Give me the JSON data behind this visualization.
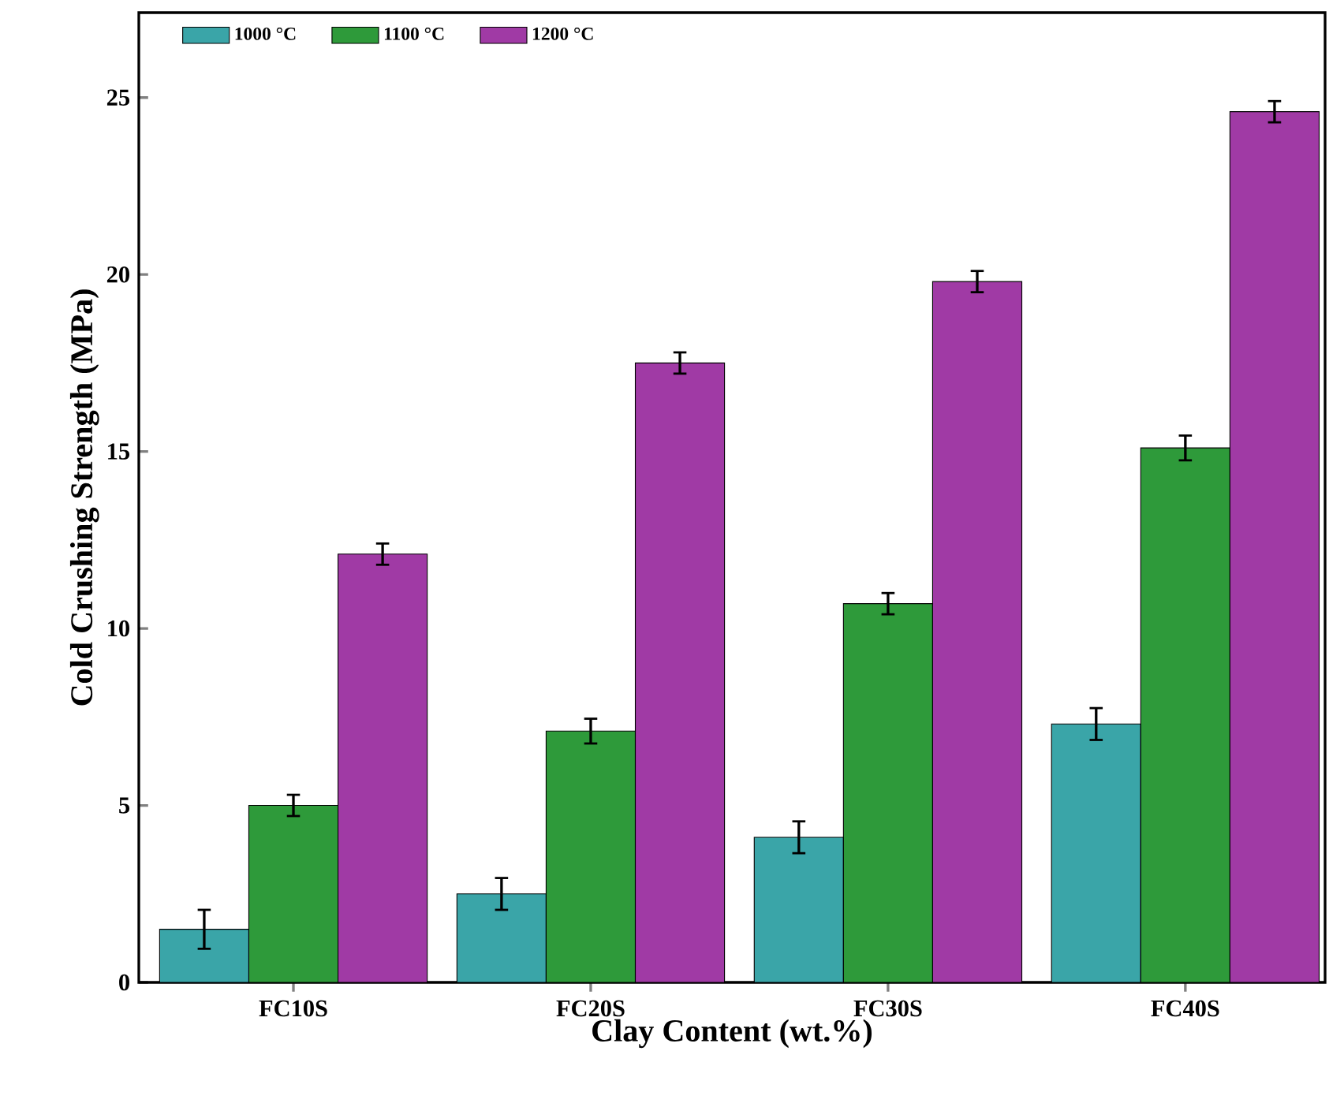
{
  "chart_data": {
    "type": "bar",
    "xlabel": "Clay Content (wt.%)",
    "ylabel": "Cold Crushing Strength (MPa)",
    "categories": [
      "FC10S",
      "FC20S",
      "FC30S",
      "FC40S"
    ],
    "series": [
      {
        "name": "1000 °C",
        "color": "#3aa5a8",
        "values": [
          1.5,
          2.5,
          4.1,
          7.3
        ],
        "errors": [
          0.55,
          0.45,
          0.45,
          0.45
        ]
      },
      {
        "name": "1100 °C",
        "color": "#2e9a3a",
        "values": [
          5.0,
          7.1,
          10.7,
          15.1
        ],
        "errors": [
          0.3,
          0.35,
          0.3,
          0.35
        ]
      },
      {
        "name": "1200 °C",
        "color": "#a03aa5",
        "values": [
          12.1,
          17.5,
          19.8,
          24.6
        ],
        "errors": [
          0.3,
          0.3,
          0.3,
          0.3
        ]
      }
    ],
    "ylim": [
      0,
      27.4
    ],
    "yticks": [
      0,
      5,
      10,
      15,
      20,
      25
    ],
    "grid": false,
    "legend": "top"
  }
}
